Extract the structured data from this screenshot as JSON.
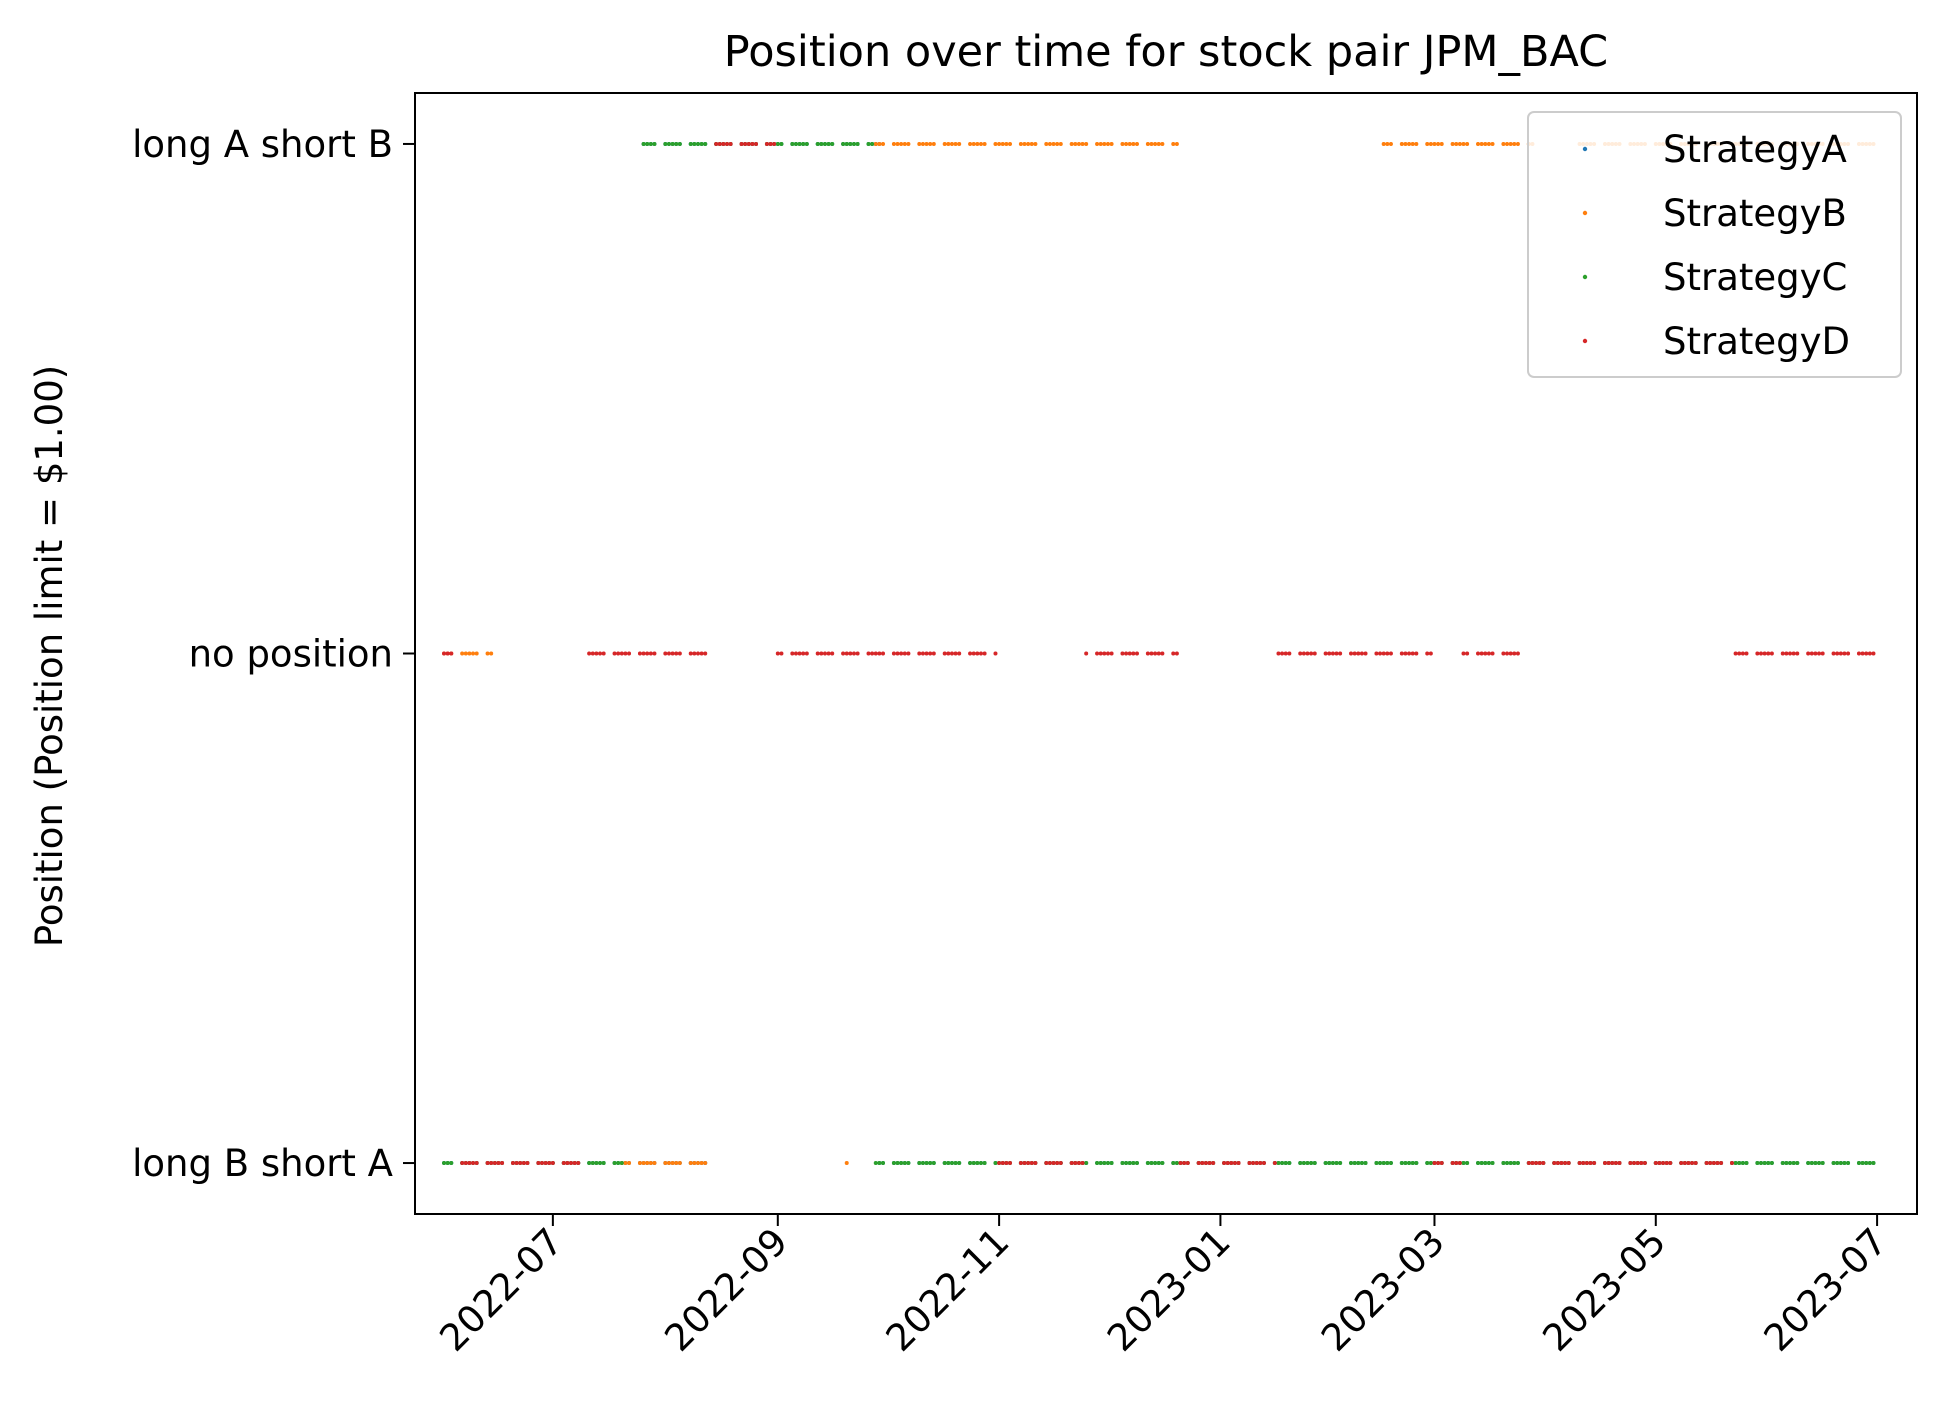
{
  "chart_data": {
    "type": "scatter",
    "title": "Position over time for stock pair JPM_BAC",
    "xlabel": "",
    "ylabel": "Position (Position limit = $1.00)",
    "xlim": [
      "2022-05-24",
      "2023-07-12"
    ],
    "ylim": [
      -1.1,
      1.1
    ],
    "x_tick_labels": [
      "2022-07",
      "2022-09",
      "2022-11",
      "2023-01",
      "2023-03",
      "2023-05",
      "2023-07"
    ],
    "x_ticks": [
      "2022-07-01",
      "2022-09-01",
      "2022-11-01",
      "2023-01-01",
      "2023-03-01",
      "2023-05-01",
      "2023-07-01"
    ],
    "y_tick_labels": [
      "long B short A",
      "no position",
      "long A short B"
    ],
    "y_ticks": [
      -1,
      0,
      1
    ],
    "legend_position": "upper right",
    "grid": false,
    "series": [
      {
        "name": "StrategyA",
        "color": "#1f77b4",
        "segments": [
          {
            "y": -1,
            "start": "2022-06-01",
            "end": "2022-08-12"
          },
          {
            "y": 1,
            "start": "2022-07-26",
            "end": "2022-09-29"
          },
          {
            "y": -1,
            "start": "2022-09-29",
            "end": "2023-06-30"
          }
        ]
      },
      {
        "name": "StrategyB",
        "color": "#ff7f0e",
        "segments": [
          {
            "y": 0,
            "start": "2022-06-01",
            "end": "2022-06-14"
          },
          {
            "y": -1,
            "start": "2022-07-20",
            "end": "2022-08-12"
          },
          {
            "y": -1,
            "start": "2022-09-20",
            "end": "2022-09-20"
          },
          {
            "y": 1,
            "start": "2022-09-28",
            "end": "2022-12-20"
          },
          {
            "y": 1,
            "start": "2023-02-15",
            "end": "2023-03-28"
          },
          {
            "y": 1,
            "start": "2023-04-10",
            "end": "2023-06-30"
          }
        ]
      },
      {
        "name": "StrategyC",
        "color": "#2ca02c",
        "segments": [
          {
            "y": -1,
            "start": "2022-06-01",
            "end": "2022-07-20"
          },
          {
            "y": 1,
            "start": "2022-07-26",
            "end": "2022-09-27"
          },
          {
            "y": -1,
            "start": "2022-09-28",
            "end": "2023-06-30"
          }
        ]
      },
      {
        "name": "StrategyD",
        "color": "#d62728",
        "segments": [
          {
            "y": 0,
            "start": "2022-06-01",
            "end": "2022-06-04"
          },
          {
            "y": -1,
            "start": "2022-06-06",
            "end": "2022-07-10"
          },
          {
            "y": 0,
            "start": "2022-07-11",
            "end": "2022-08-12"
          },
          {
            "y": 1,
            "start": "2022-08-15",
            "end": "2022-08-31"
          },
          {
            "y": 0,
            "start": "2022-09-01",
            "end": "2022-10-31"
          },
          {
            "y": -1,
            "start": "2022-11-01",
            "end": "2022-11-24"
          },
          {
            "y": 0,
            "start": "2022-11-25",
            "end": "2022-12-20"
          },
          {
            "y": -1,
            "start": "2022-12-21",
            "end": "2023-01-16"
          },
          {
            "y": 0,
            "start": "2023-01-17",
            "end": "2023-02-28"
          },
          {
            "y": -1,
            "start": "2023-03-01",
            "end": "2023-03-08"
          },
          {
            "y": 0,
            "start": "2023-03-09",
            "end": "2023-03-24"
          },
          {
            "y": -1,
            "start": "2023-03-27",
            "end": "2023-05-22"
          },
          {
            "y": 0,
            "start": "2023-05-23",
            "end": "2023-06-30"
          }
        ]
      }
    ]
  }
}
